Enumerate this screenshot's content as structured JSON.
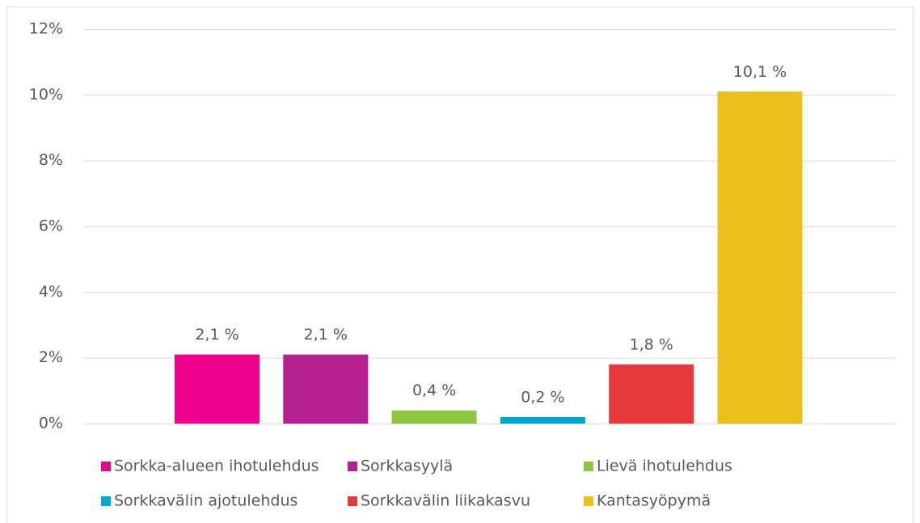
{
  "chart_data": {
    "type": "bar",
    "categories": [
      "Sorkka-alueen ihotulehdus",
      "Sorkkasyylä",
      "Lievä ihotulehdus",
      "Sorkkavälin ajotulehdus",
      "Sorkkavälin liikakasvu",
      "Kantasyöpymä"
    ],
    "values": [
      2.1,
      2.1,
      0.4,
      0.2,
      1.8,
      10.1
    ],
    "value_labels": [
      "2,1 %",
      "2,1 %",
      "0,4 %",
      "0,2 %",
      "1,8 %",
      "10,1 %"
    ],
    "colors": [
      "#ec008c",
      "#b5218f",
      "#8dc63f",
      "#00a9ce",
      "#e8393a",
      "#ecc01a"
    ],
    "ylim": [
      0,
      12
    ],
    "yticks": [
      {
        "value": 0,
        "label": "0%"
      },
      {
        "value": 2,
        "label": "2%"
      },
      {
        "value": 4,
        "label": "4%"
      },
      {
        "value": 6,
        "label": "6%"
      },
      {
        "value": 8,
        "label": "8%"
      },
      {
        "value": 10,
        "label": "10%"
      },
      {
        "value": 12,
        "label": "12%"
      }
    ],
    "grid": true,
    "legend": "bottom"
  }
}
